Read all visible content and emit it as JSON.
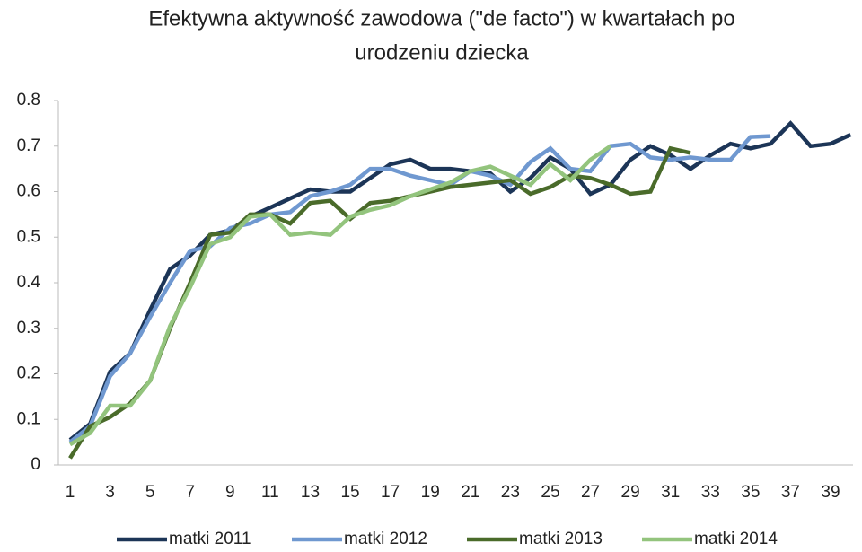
{
  "chart_data": {
    "type": "line",
    "title": [
      "Efektywna aktywność zawodowa (\"de facto\") w kwartałach po",
      "urodzeniu dziecka"
    ],
    "categories": [
      "1",
      null,
      "3",
      null,
      "5",
      null,
      "7",
      null,
      "9",
      null,
      "11",
      null,
      "13",
      null,
      "15",
      null,
      "17",
      null,
      "19",
      null,
      "21",
      null,
      "23",
      null,
      "25",
      null,
      "27",
      null,
      "29",
      null,
      "31",
      null,
      "33",
      null,
      "35",
      null,
      "37",
      null,
      "39",
      null
    ],
    "ylim": [
      0,
      0.8
    ],
    "yticks": [
      0,
      0.1,
      0.2,
      0.3,
      0.4,
      0.5,
      0.6,
      0.7,
      0.8
    ],
    "grid": false,
    "legend": "bottom",
    "series": [
      {
        "name": "matki 2011",
        "color": "#1c3557",
        "values": [
          0.055,
          0.09,
          0.205,
          0.245,
          0.34,
          0.43,
          0.46,
          0.505,
          0.515,
          0.545,
          0.565,
          0.585,
          0.605,
          0.6,
          0.6,
          0.63,
          0.66,
          0.67,
          0.65,
          0.65,
          0.645,
          0.64,
          0.6,
          0.63,
          0.675,
          0.65,
          0.595,
          0.615,
          0.67,
          0.7,
          0.68,
          0.65,
          0.68,
          0.705,
          0.695,
          0.705,
          0.75,
          0.7,
          0.705,
          0.725
        ]
      },
      {
        "name": "matki 2012",
        "color": "#6f98d0",
        "values": [
          0.05,
          0.085,
          0.195,
          0.245,
          0.325,
          0.4,
          0.47,
          0.48,
          0.52,
          0.53,
          0.55,
          0.555,
          0.59,
          0.6,
          0.615,
          0.65,
          0.65,
          0.635,
          0.625,
          0.615,
          0.645,
          0.635,
          0.615,
          0.665,
          0.695,
          0.65,
          0.645,
          0.7,
          0.705,
          0.675,
          0.67,
          0.675,
          0.67,
          0.67,
          0.72,
          0.722,
          null,
          null,
          null,
          null
        ]
      },
      {
        "name": "matki 2013",
        "color": "#4a6b2a",
        "values": [
          0.015,
          0.085,
          0.105,
          0.135,
          0.185,
          0.3,
          0.4,
          0.505,
          0.51,
          0.55,
          0.55,
          0.53,
          0.575,
          0.58,
          0.54,
          0.575,
          0.58,
          0.59,
          0.6,
          0.61,
          0.615,
          0.62,
          0.625,
          0.595,
          0.61,
          0.635,
          0.63,
          0.615,
          0.595,
          0.6,
          0.695,
          0.685,
          null,
          null,
          null,
          null,
          null,
          null,
          null,
          null
        ]
      },
      {
        "name": "matki 2014",
        "color": "#93c47d",
        "values": [
          0.045,
          0.07,
          0.13,
          0.13,
          0.185,
          0.305,
          0.39,
          0.485,
          0.5,
          0.545,
          0.55,
          0.505,
          0.51,
          0.505,
          0.545,
          0.56,
          0.57,
          0.59,
          0.605,
          0.62,
          0.645,
          0.655,
          0.635,
          0.615,
          0.66,
          0.625,
          0.67,
          0.7,
          null,
          null,
          null,
          null,
          null,
          null,
          null,
          null,
          null,
          null,
          null,
          null
        ]
      }
    ]
  }
}
